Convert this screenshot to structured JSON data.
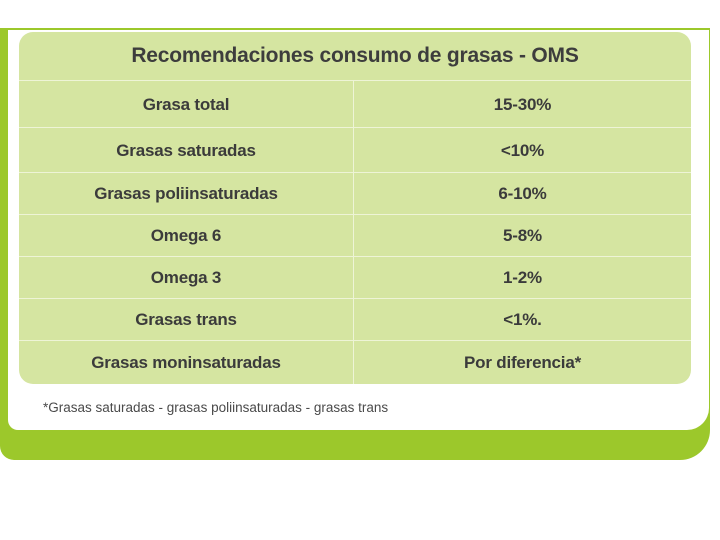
{
  "table": {
    "title": "Recomendaciones consumo de grasas - OMS",
    "rows": [
      {
        "label": "Grasa total",
        "value": "15-30%"
      },
      {
        "label": "Grasas saturadas",
        "value": "<10%"
      },
      {
        "label": "Grasas poliinsaturadas",
        "value": "6-10%"
      },
      {
        "label": "Omega 6",
        "value": "5-8%"
      },
      {
        "label": "Omega 3",
        "value": "1-2%"
      },
      {
        "label": "Grasas trans",
        "value": "<1%."
      },
      {
        "label": "Grasas moninsaturadas",
        "value": "Por diferencia*"
      }
    ]
  },
  "footnote": "*Grasas saturadas - grasas poliinsaturadas - grasas trans",
  "colors": {
    "frame_green": "#9cc82b",
    "card_green": "#d5e5a1",
    "text": "#3b3b3b"
  }
}
